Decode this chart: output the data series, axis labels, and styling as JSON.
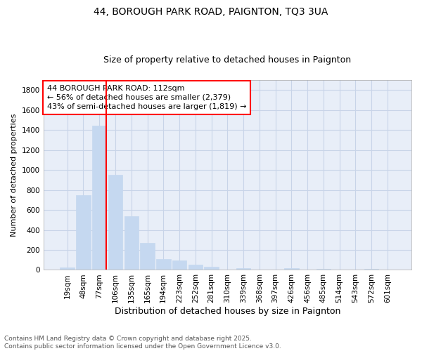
{
  "title_line1": "44, BOROUGH PARK ROAD, PAIGNTON, TQ3 3UA",
  "title_line2": "Size of property relative to detached houses in Paignton",
  "xlabel": "Distribution of detached houses by size in Paignton",
  "ylabel": "Number of detached properties",
  "categories": [
    "19sqm",
    "48sqm",
    "77sqm",
    "106sqm",
    "135sqm",
    "165sqm",
    "194sqm",
    "223sqm",
    "252sqm",
    "281sqm",
    "310sqm",
    "339sqm",
    "368sqm",
    "397sqm",
    "426sqm",
    "456sqm",
    "485sqm",
    "514sqm",
    "543sqm",
    "572sqm",
    "601sqm"
  ],
  "values": [
    22,
    748,
    1440,
    950,
    535,
    270,
    110,
    95,
    50,
    28,
    0,
    18,
    0,
    0,
    18,
    0,
    12,
    0,
    0,
    8,
    0
  ],
  "bar_color": "#c5d8f0",
  "bar_edge_color": "#c5d8f0",
  "grid_color": "#c8d4e8",
  "bg_color": "#e8eef8",
  "fig_bg_color": "#ffffff",
  "red_line_index": 3,
  "annotation_text": "44 BOROUGH PARK ROAD: 112sqm\n← 56% of detached houses are smaller (2,379)\n43% of semi-detached houses are larger (1,819) →",
  "ylim": [
    0,
    1900
  ],
  "yticks": [
    0,
    200,
    400,
    600,
    800,
    1000,
    1200,
    1400,
    1600,
    1800
  ],
  "footer": "Contains HM Land Registry data © Crown copyright and database right 2025.\nContains public sector information licensed under the Open Government Licence v3.0.",
  "title_fontsize": 10,
  "subtitle_fontsize": 9,
  "xlabel_fontsize": 9,
  "ylabel_fontsize": 8,
  "tick_fontsize": 7.5,
  "annot_fontsize": 8,
  "footer_fontsize": 6.5
}
